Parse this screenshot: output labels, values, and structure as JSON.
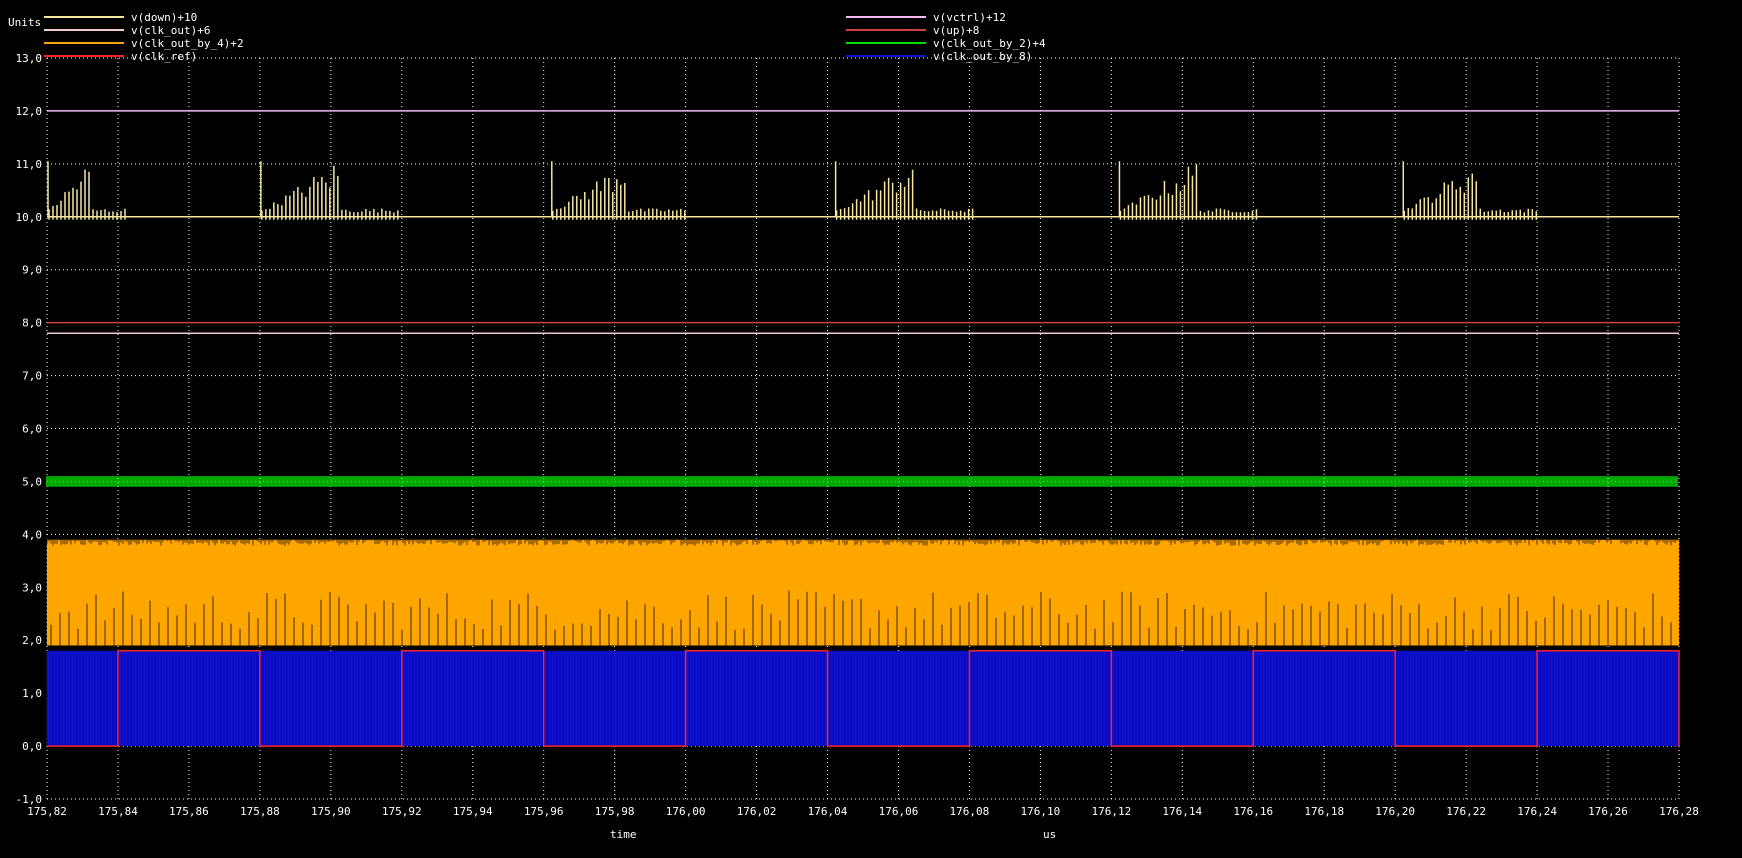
{
  "chart_data": {
    "type": "line",
    "ylabel": "Units",
    "xlabel": "time",
    "xunit": "us",
    "xlim": [
      175.82,
      176.28
    ],
    "ylim": [
      -1.0,
      13.0
    ],
    "grid": true,
    "legend_placement": "top",
    "x_ticks": [
      "175,82",
      "175,84",
      "175,86",
      "175,88",
      "175,90",
      "175,92",
      "175,94",
      "175,96",
      "175,98",
      "176,00",
      "176,02",
      "176,04",
      "176,06",
      "176,08",
      "176,10",
      "176,12",
      "176,14",
      "176,16",
      "176,18",
      "176,20",
      "176,22",
      "176,24",
      "176,26",
      "176,28"
    ],
    "y_ticks": [
      "-1,0",
      "0,0",
      "1,0",
      "2,0",
      "3,0",
      "4,0",
      "5,0",
      "6,0",
      "7,0",
      "8,0",
      "9,0",
      "10,0",
      "11,0",
      "12,0",
      "13,0"
    ],
    "series": [
      {
        "name": "v(down)+10",
        "color": "#f5e6a0",
        "baseline": 10.0,
        "style": "pulse-bursts",
        "bursts": [
          [
            175.82,
            175.842
          ],
          [
            175.88,
            175.92
          ],
          [
            175.962,
            176.0
          ],
          [
            176.042,
            176.082
          ],
          [
            176.122,
            176.162
          ],
          [
            176.202,
            176.24
          ]
        ],
        "peak": 11.1
      },
      {
        "name": "v(clk_out)+6",
        "color": "#f0c8d0",
        "values_constant": 7.8
      },
      {
        "name": "v(clk_out_by_4)+2",
        "color": "#ffa500",
        "band": [
          1.9,
          3.9
        ]
      },
      {
        "name": "v(clk_ref)",
        "color": "#ff2020",
        "style": "square",
        "low": 0.0,
        "high": 1.8,
        "period": 0.08,
        "first_rise": 175.84
      },
      {
        "name": "v(vctrl)+12",
        "color": "#f4b8f4",
        "values_constant": 12.0
      },
      {
        "name": "v(up)+8",
        "color": "#d04040",
        "values_constant": 8.0
      },
      {
        "name": "v(clk_out_by_2)+4",
        "color": "#00e000",
        "band": [
          4.9,
          5.1
        ]
      },
      {
        "name": "v(clk_out_by_8)",
        "color": "#1010d0",
        "band": [
          0.0,
          1.8
        ]
      }
    ]
  }
}
